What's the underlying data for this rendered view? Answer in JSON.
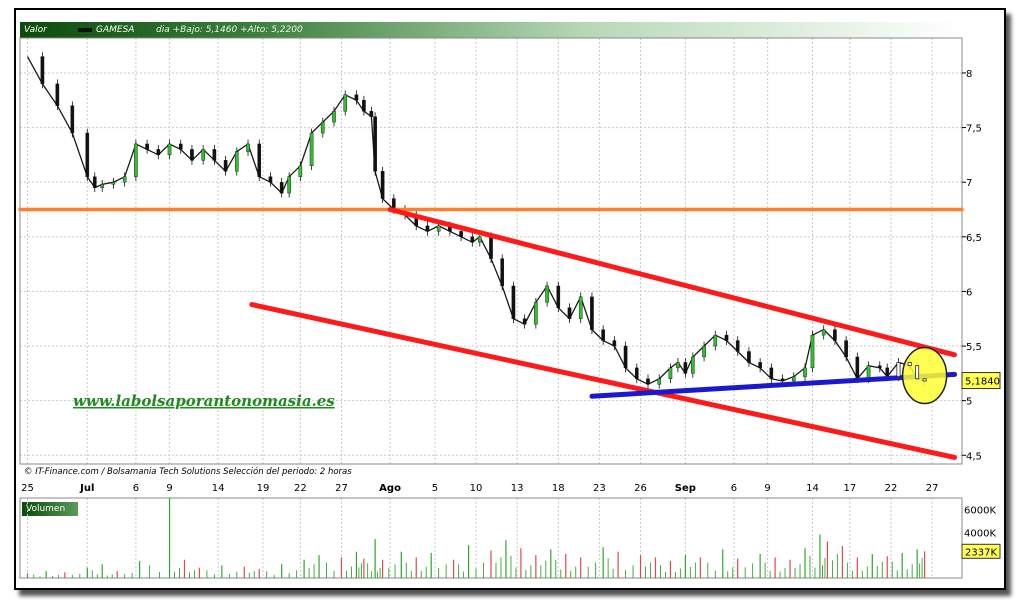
{
  "header": {
    "valor_label": "Valor",
    "ticker": "GAMESA",
    "stats": "dia +Bajo: 5,1460 +Alto: 5,2200"
  },
  "credit": "© IT-Finance.com / Bolsamania Tech Solutions  Selección del periodo: 2 horas",
  "watermark": "www.labolsaporantonomasia.es",
  "volume_panel": {
    "label": "Volumen",
    "ticks": [
      "6000K",
      "4000K"
    ],
    "last": "2337K",
    "max_k": 7000
  },
  "chart_data": {
    "type": "candlestick",
    "title": "GAMESA",
    "price_axis": {
      "min": 4.42,
      "max": 8.32,
      "ticks": [
        "8",
        "7,5",
        "7",
        "6,5",
        "6",
        "5,5",
        "5",
        "4,5"
      ],
      "tick_values": [
        8,
        7.5,
        7,
        6.5,
        6,
        5.5,
        5,
        4.5
      ]
    },
    "last_price_label": "5,1840",
    "last_price": 5.184,
    "x_axis_labels": [
      "25",
      "Jul",
      "6",
      "9",
      "14",
      "19",
      "22",
      "27",
      "Ago",
      "5",
      "10",
      "13",
      "18",
      "23",
      "26",
      "Sep",
      "6",
      "9",
      "14",
      "17",
      "22",
      "27"
    ],
    "x_axis_positions": [
      0,
      16,
      29,
      38,
      51,
      63,
      73,
      84,
      97,
      109,
      120,
      131,
      142,
      153,
      164,
      176,
      189,
      198,
      210,
      220,
      231,
      242
    ],
    "x_axis_bold": [
      "Jul",
      "Ago",
      "Sep"
    ],
    "x_range": [
      -2,
      250
    ],
    "price_path": [
      [
        0,
        8.15
      ],
      [
        4,
        7.9
      ],
      [
        8,
        7.7
      ],
      [
        12,
        7.45
      ],
      [
        16,
        7.05
      ],
      [
        18,
        6.95
      ],
      [
        20,
        6.98
      ],
      [
        23,
        7.0
      ],
      [
        26,
        7.05
      ],
      [
        29,
        7.35
      ],
      [
        32,
        7.3
      ],
      [
        35,
        7.25
      ],
      [
        38,
        7.35
      ],
      [
        41,
        7.3
      ],
      [
        44,
        7.2
      ],
      [
        47,
        7.3
      ],
      [
        50,
        7.2
      ],
      [
        53,
        7.1
      ],
      [
        56,
        7.28
      ],
      [
        59,
        7.35
      ],
      [
        62,
        7.05
      ],
      [
        65,
        7.0
      ],
      [
        68,
        6.9
      ],
      [
        70,
        7.05
      ],
      [
        73,
        7.15
      ],
      [
        76,
        7.45
      ],
      [
        79,
        7.55
      ],
      [
        82,
        7.65
      ],
      [
        85,
        7.8
      ],
      [
        88,
        7.75
      ],
      [
        90,
        7.65
      ],
      [
        92,
        7.6
      ],
      [
        93,
        7.1
      ],
      [
        95,
        6.85
      ],
      [
        98,
        6.75
      ],
      [
        101,
        6.7
      ],
      [
        104,
        6.6
      ],
      [
        107,
        6.55
      ],
      [
        110,
        6.6
      ],
      [
        113,
        6.55
      ],
      [
        116,
        6.5
      ],
      [
        119,
        6.45
      ],
      [
        121,
        6.5
      ],
      [
        124,
        6.3
      ],
      [
        127,
        6.05
      ],
      [
        130,
        5.75
      ],
      [
        133,
        5.7
      ],
      [
        136,
        5.9
      ],
      [
        139,
        6.05
      ],
      [
        142,
        5.85
      ],
      [
        145,
        5.75
      ],
      [
        148,
        5.95
      ],
      [
        151,
        5.65
      ],
      [
        154,
        5.55
      ],
      [
        157,
        5.5
      ],
      [
        160,
        5.3
      ],
      [
        163,
        5.2
      ],
      [
        166,
        5.15
      ],
      [
        169,
        5.2
      ],
      [
        172,
        5.3
      ],
      [
        174,
        5.35
      ],
      [
        176,
        5.25
      ],
      [
        178,
        5.4
      ],
      [
        181,
        5.5
      ],
      [
        184,
        5.6
      ],
      [
        187,
        5.55
      ],
      [
        190,
        5.45
      ],
      [
        193,
        5.35
      ],
      [
        196,
        5.3
      ],
      [
        199,
        5.2
      ],
      [
        202,
        5.18
      ],
      [
        205,
        5.22
      ],
      [
        208,
        5.3
      ],
      [
        210,
        5.6
      ],
      [
        213,
        5.65
      ],
      [
        216,
        5.55
      ],
      [
        219,
        5.4
      ],
      [
        222,
        5.2
      ],
      [
        225,
        5.32
      ],
      [
        228,
        5.3
      ],
      [
        230,
        5.22
      ],
      [
        233,
        5.35
      ],
      [
        236,
        5.32
      ],
      [
        238,
        5.2
      ],
      [
        240,
        5.18
      ]
    ],
    "volume_path": [
      [
        0,
        400
      ],
      [
        5,
        600
      ],
      [
        10,
        500
      ],
      [
        16,
        900
      ],
      [
        20,
        1200
      ],
      [
        24,
        600
      ],
      [
        30,
        1500
      ],
      [
        38,
        7000
      ],
      [
        42,
        1600
      ],
      [
        46,
        900
      ],
      [
        52,
        1100
      ],
      [
        58,
        1000
      ],
      [
        62,
        800
      ],
      [
        68,
        1200
      ],
      [
        74,
        1600
      ],
      [
        78,
        2000
      ],
      [
        84,
        1800
      ],
      [
        88,
        2300
      ],
      [
        90,
        1700
      ],
      [
        93,
        3400
      ],
      [
        95,
        1600
      ],
      [
        100,
        2300
      ],
      [
        104,
        1800
      ],
      [
        108,
        2200
      ],
      [
        114,
        1600
      ],
      [
        118,
        2900
      ],
      [
        124,
        2400
      ],
      [
        128,
        3300
      ],
      [
        132,
        2600
      ],
      [
        136,
        2000
      ],
      [
        140,
        2500
      ],
      [
        144,
        2100
      ],
      [
        148,
        1800
      ],
      [
        154,
        2700
      ],
      [
        158,
        2300
      ],
      [
        164,
        2000
      ],
      [
        168,
        1800
      ],
      [
        172,
        1500
      ],
      [
        176,
        2000
      ],
      [
        180,
        1800
      ],
      [
        186,
        2500
      ],
      [
        190,
        1700
      ],
      [
        196,
        2100
      ],
      [
        200,
        1800
      ],
      [
        204,
        1600
      ],
      [
        208,
        2600
      ],
      [
        212,
        3800
      ],
      [
        214,
        3200
      ],
      [
        218,
        2800
      ],
      [
        222,
        1800
      ],
      [
        226,
        2100
      ],
      [
        230,
        1900
      ],
      [
        234,
        2200
      ],
      [
        238,
        2500
      ],
      [
        240,
        2337
      ]
    ],
    "trendlines": [
      {
        "name": "horizontal",
        "color": "#ff7f2a",
        "x1": -2,
        "y1": 6.75,
        "x2": 250,
        "y2": 6.75
      },
      {
        "name": "upper-channel",
        "color": "#ff1a1a",
        "x1": 97,
        "y1": 6.75,
        "x2": 248,
        "y2": 5.42
      },
      {
        "name": "lower-channel",
        "color": "#ff1a1a",
        "x1": 60,
        "y1": 5.88,
        "x2": 248,
        "y2": 4.48
      },
      {
        "name": "support",
        "color": "#1a1acc",
        "x1": 151,
        "y1": 5.04,
        "x2": 248,
        "y2": 5.24
      }
    ],
    "highlight": {
      "color": "#ffff33",
      "x": 240,
      "y": 5.23
    }
  }
}
